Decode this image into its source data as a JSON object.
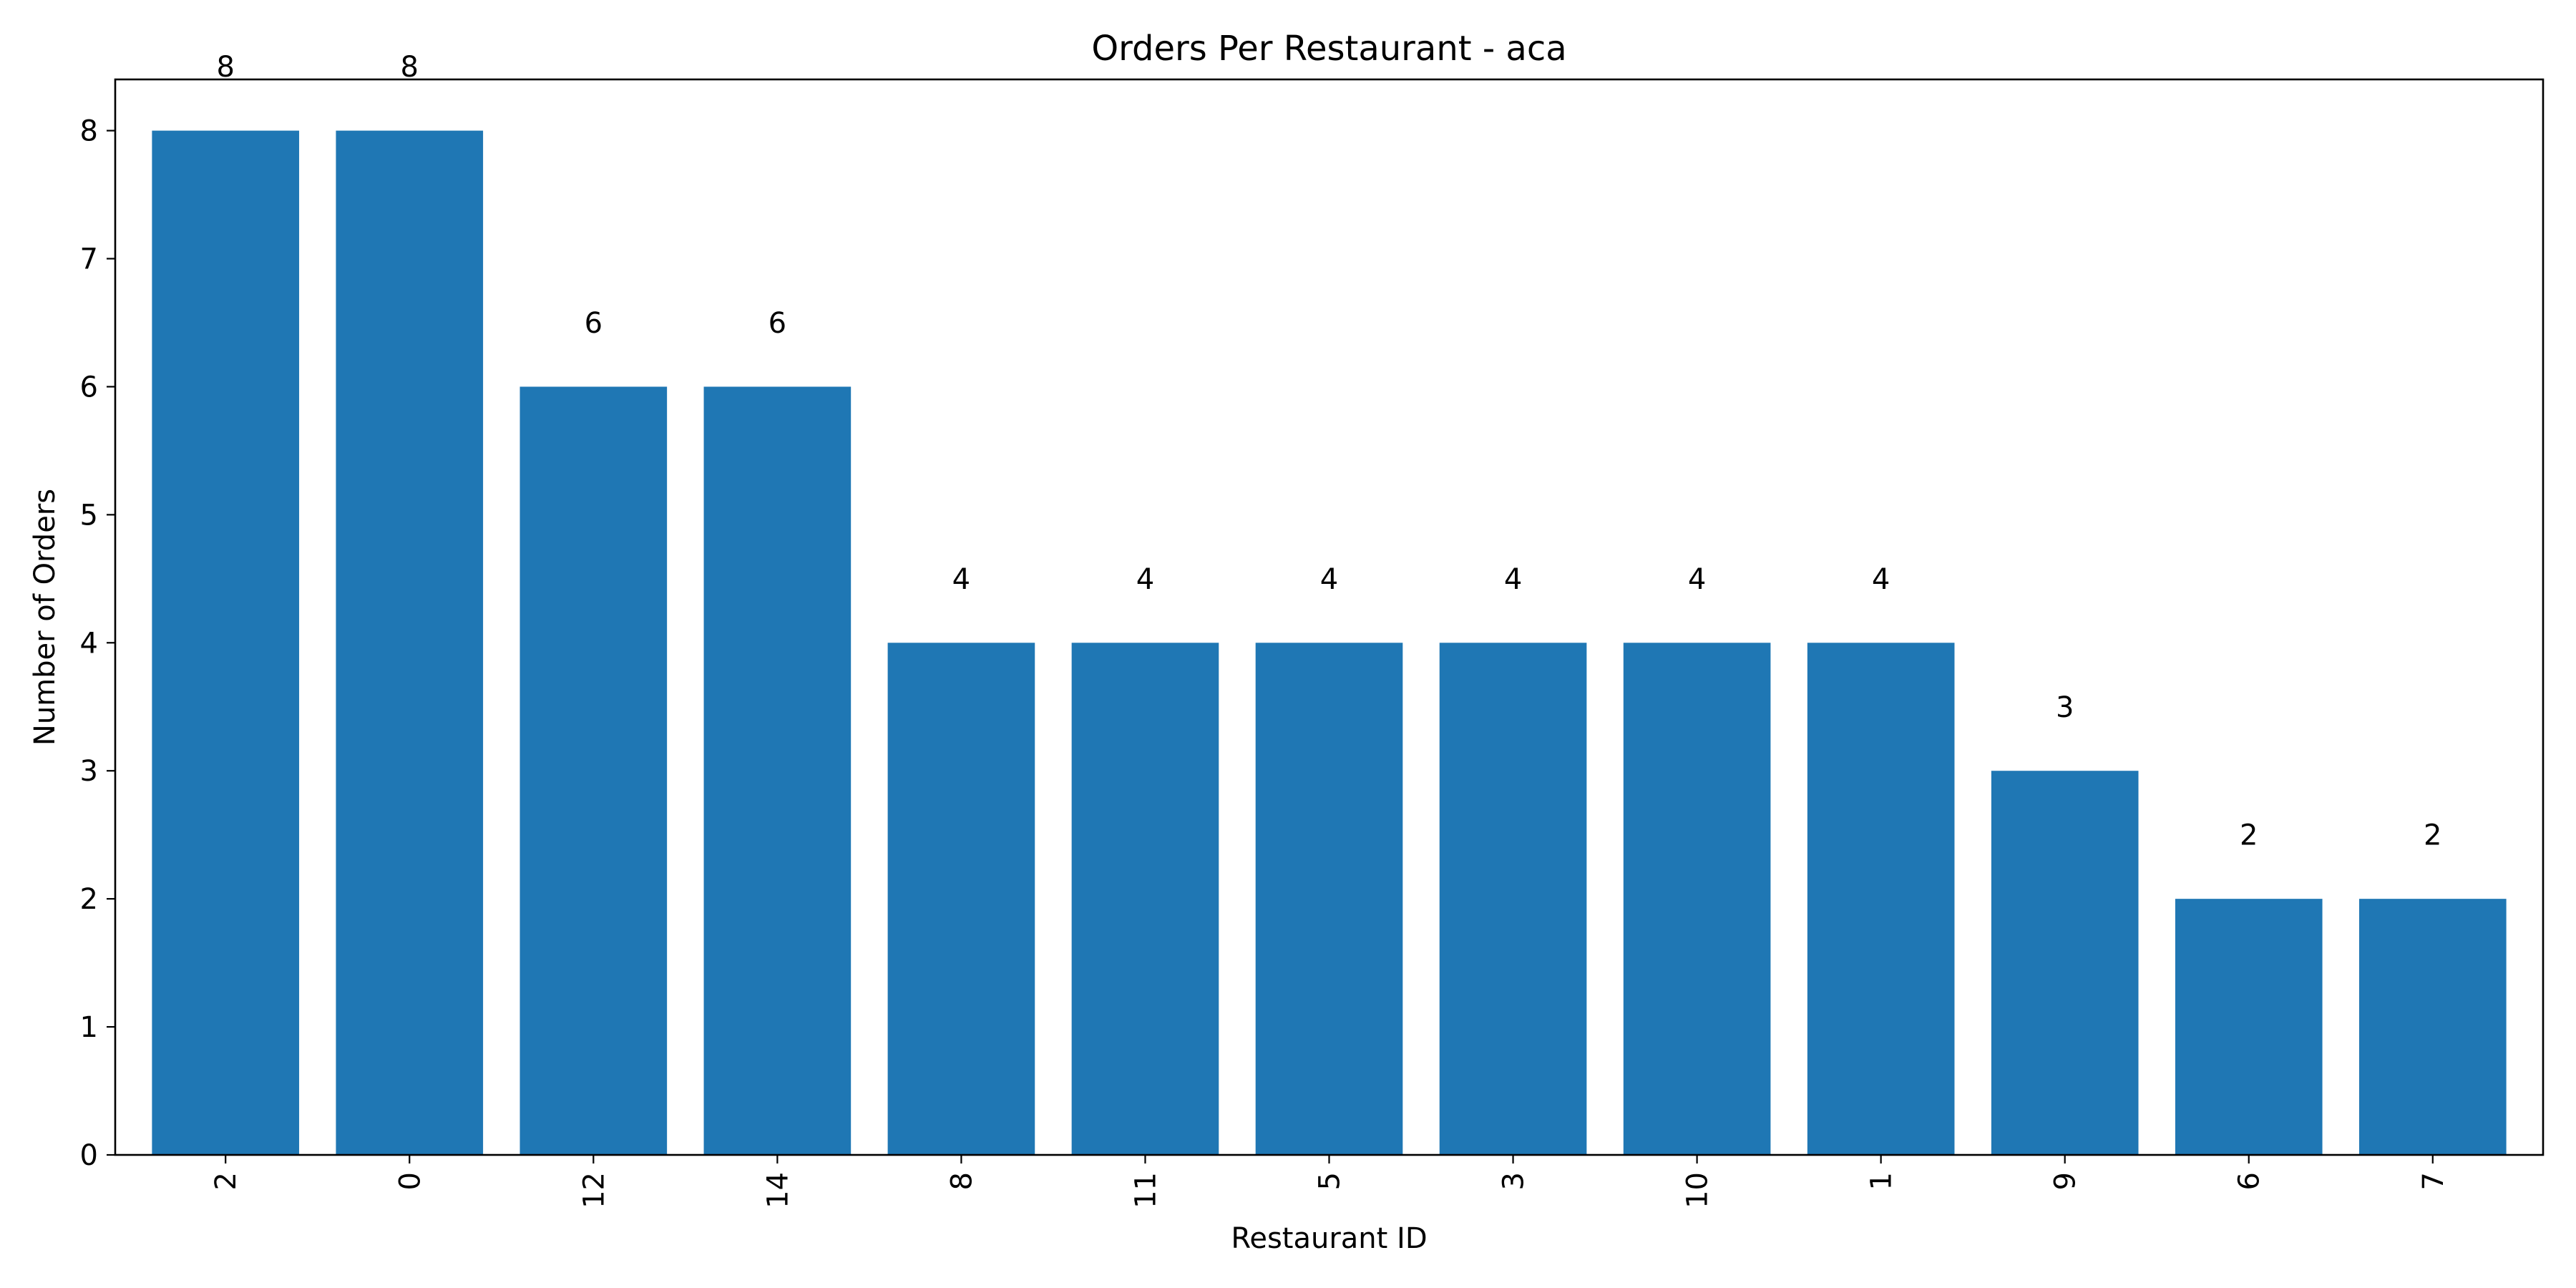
{
  "chart_data": {
    "type": "bar",
    "title": "Orders Per Restaurant - aca",
    "xlabel": "Restaurant ID",
    "ylabel": "Number of Orders",
    "categories": [
      "2",
      "0",
      "12",
      "14",
      "8",
      "11",
      "5",
      "3",
      "10",
      "1",
      "9",
      "6",
      "7"
    ],
    "values": [
      8,
      8,
      6,
      6,
      4,
      4,
      4,
      4,
      4,
      4,
      3,
      2,
      2
    ],
    "ylim": [
      0,
      8.4
    ],
    "yticks": [
      0,
      1,
      2,
      3,
      4,
      5,
      6,
      7,
      8
    ],
    "bar_color": "#1f77b4",
    "grid": false,
    "legend": "none",
    "xtick_rotation": "vertical"
  }
}
